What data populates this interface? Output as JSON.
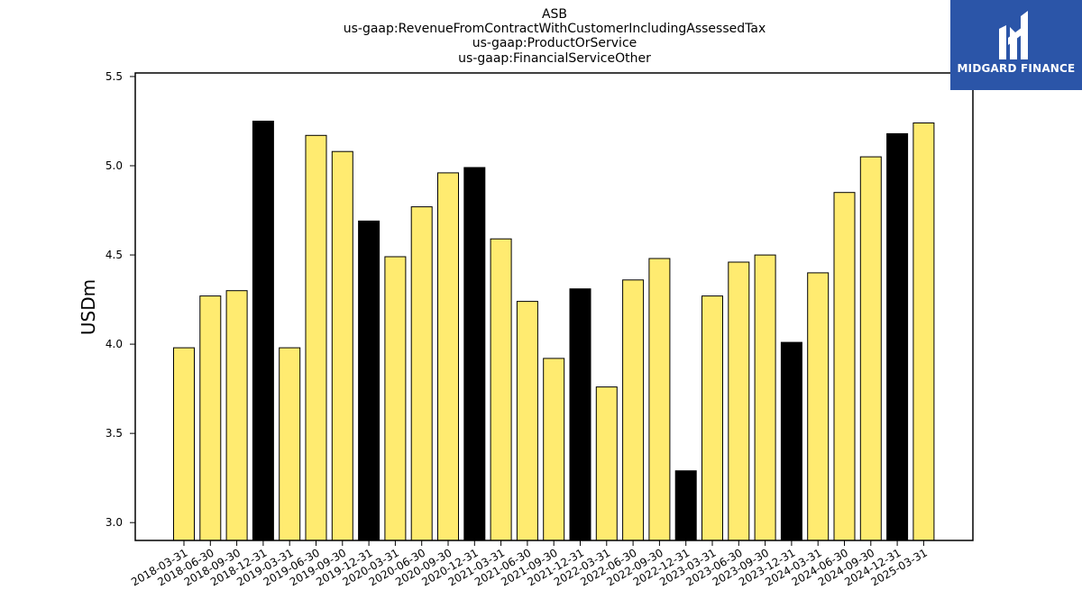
{
  "chart_data": {
    "type": "bar",
    "title_lines": [
      "ASB",
      "us-gaap:RevenueFromContractWithCustomerIncludingAssessedTax",
      "us-gaap:ProductOrService",
      "us-gaap:FinancialServiceOther"
    ],
    "ylabel": "USDm",
    "xlabel": "",
    "ylim": [
      2.9,
      5.52
    ],
    "yticks": [
      3.0,
      3.5,
      4.0,
      4.5,
      5.0,
      5.5
    ],
    "ytick_labels": [
      "3.0",
      "3.5",
      "4.0",
      "4.5",
      "5.0",
      "5.5"
    ],
    "categories": [
      "2018-03-31",
      "2018-06-30",
      "2018-09-30",
      "2018-12-31",
      "2019-03-31",
      "2019-06-30",
      "2019-09-30",
      "2019-12-31",
      "2020-03-31",
      "2020-06-30",
      "2020-09-30",
      "2020-12-31",
      "2021-03-31",
      "2021-06-30",
      "2021-09-30",
      "2021-12-31",
      "2022-03-31",
      "2022-06-30",
      "2022-09-30",
      "2022-12-31",
      "2023-03-31",
      "2023-06-30",
      "2023-09-30",
      "2023-12-31",
      "2024-03-31",
      "2024-06-30",
      "2024-09-30",
      "2024-12-31",
      "2025-03-31"
    ],
    "values": [
      3.98,
      4.27,
      4.3,
      5.25,
      3.98,
      5.17,
      5.08,
      4.69,
      4.49,
      4.77,
      4.96,
      4.99,
      4.59,
      4.24,
      3.92,
      4.31,
      3.76,
      4.36,
      4.48,
      3.29,
      4.27,
      4.46,
      4.5,
      4.01,
      4.4,
      4.85,
      5.05,
      5.18,
      5.24
    ],
    "bar_colors": [
      "#ffeb70",
      "#ffeb70",
      "#ffeb70",
      "#000000",
      "#ffeb70",
      "#ffeb70",
      "#ffeb70",
      "#000000",
      "#ffeb70",
      "#ffeb70",
      "#ffeb70",
      "#000000",
      "#ffeb70",
      "#ffeb70",
      "#ffeb70",
      "#000000",
      "#ffeb70",
      "#ffeb70",
      "#ffeb70",
      "#000000",
      "#ffeb70",
      "#ffeb70",
      "#ffeb70",
      "#000000",
      "#ffeb70",
      "#ffeb70",
      "#ffeb70",
      "#000000",
      "#ffeb70"
    ],
    "grid": false,
    "legend": "none"
  },
  "logo": {
    "text": "MIDGARD FINANCE",
    "background": "#2b55a8",
    "icon": "midgard-logo-icon"
  }
}
